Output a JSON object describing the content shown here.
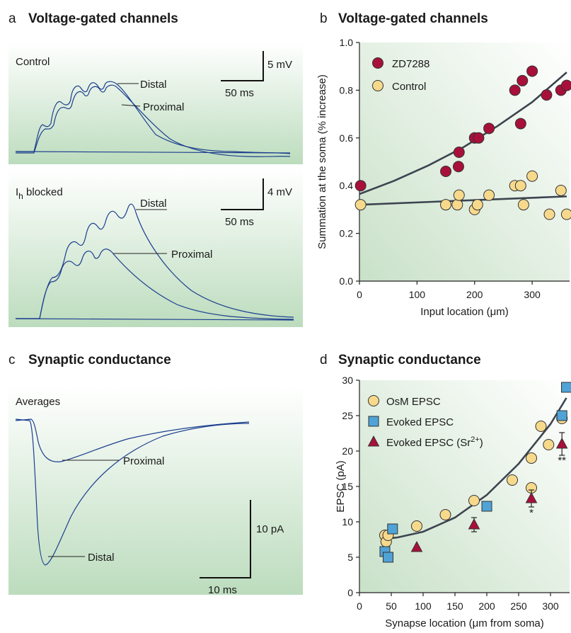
{
  "panel_a": {
    "letter": "a",
    "title": "Voltage-gated channels",
    "top": {
      "label": "Control",
      "scale_v": "5 mV",
      "scale_t": "50 ms",
      "distal": "Distal",
      "proximal": "Proximal"
    },
    "bottom": {
      "label_main": "I",
      "label_sub": "h",
      "label_rest": " blocked",
      "scale_v": "4 mV",
      "scale_t": "50 ms",
      "distal": "Distal",
      "proximal": "Proximal"
    }
  },
  "panel_c": {
    "letter": "c",
    "title": "Synaptic conductance",
    "label": "Averages",
    "proximal": "Proximal",
    "distal": "Distal",
    "scale_i": "10 pA",
    "scale_t": "10 ms"
  },
  "colors": {
    "red": "#a8103a",
    "yellow": "#f7d98c",
    "blue": "#4fa3d6",
    "trace": "#1c3f8f",
    "bg_green": "#c7e0c7"
  },
  "chart_data": [
    {
      "panel": "b",
      "type": "scatter",
      "letter": "b",
      "title": "Voltage-gated channels",
      "xlabel": "Input location (μm)",
      "ylabel": "Summation at the soma (% increase)",
      "xlim": [
        0,
        365
      ],
      "ylim": [
        0,
        1.0
      ],
      "xticks": [
        "0",
        "100",
        "200",
        "300"
      ],
      "xtick_values": [
        0,
        100,
        200,
        300
      ],
      "yticks": [
        "0.0",
        "0.2",
        "0.4",
        "0.6",
        "0.8",
        "1.0"
      ],
      "ytick_values": [
        0,
        0.2,
        0.4,
        0.6,
        0.8,
        1.0
      ],
      "legend_position": "top-left",
      "series": [
        {
          "name": "ZD7288",
          "marker": "circle",
          "color": "#a8103a",
          "x": [
            2,
            150,
            172,
            173,
            200,
            207,
            225,
            270,
            280,
            283,
            300,
            325,
            350,
            360
          ],
          "y": [
            0.4,
            0.46,
            0.48,
            0.54,
            0.6,
            0.6,
            0.64,
            0.8,
            0.66,
            0.84,
            0.88,
            0.78,
            0.8,
            0.82
          ]
        },
        {
          "name": "Control",
          "marker": "circle",
          "color": "#f7d98c",
          "x": [
            2,
            150,
            170,
            173,
            200,
            205,
            225,
            270,
            280,
            285,
            300,
            330,
            350,
            360
          ],
          "y": [
            0.32,
            0.32,
            0.32,
            0.36,
            0.3,
            0.32,
            0.36,
            0.4,
            0.4,
            0.32,
            0.44,
            0.28,
            0.38,
            0.28
          ]
        }
      ],
      "fits": [
        {
          "x": [
            0,
            60,
            120,
            180,
            240,
            300,
            360
          ],
          "y": [
            0.365,
            0.42,
            0.485,
            0.56,
            0.65,
            0.75,
            0.875
          ]
        },
        {
          "x": [
            0,
            360
          ],
          "y": [
            0.32,
            0.355
          ]
        }
      ]
    },
    {
      "panel": "d",
      "type": "scatter",
      "letter": "d",
      "title": "Synaptic conductance",
      "xlabel": "Synapse location (μm from soma)",
      "ylabel": "EPSC (pA)",
      "xlim": [
        0,
        330
      ],
      "ylim": [
        0,
        30
      ],
      "xticks": [
        "0",
        "50",
        "100",
        "150",
        "200",
        "250",
        "300"
      ],
      "xtick_values": [
        0,
        50,
        100,
        150,
        200,
        250,
        300
      ],
      "yticks": [
        "0",
        "5",
        "10",
        "15",
        "20",
        "25",
        "30"
      ],
      "ytick_values": [
        0,
        5,
        10,
        15,
        20,
        25,
        30
      ],
      "legend_position": "top-left",
      "legend_sr_main": "Evoked EPSC (Sr",
      "legend_sr_sup": "2+",
      "legend_sr_end": ")",
      "series": [
        {
          "name": "OsM EPSC",
          "marker": "circle",
          "color": "#f7d98c",
          "x": [
            40,
            42,
            45,
            90,
            135,
            180,
            240,
            270,
            270,
            285,
            297,
            318
          ],
          "y": [
            8.1,
            7.2,
            8.1,
            9.4,
            11.0,
            13.0,
            15.9,
            19.0,
            14.8,
            23.5,
            20.9,
            24.6
          ]
        },
        {
          "name": "Evoked EPSC",
          "marker": "square",
          "color": "#4fa3d6",
          "x": [
            40,
            45,
            52,
            200,
            318,
            325
          ],
          "y": [
            5.8,
            5.0,
            9.0,
            12.2,
            25.0,
            29.0
          ]
        },
        {
          "name": "Evoked EPSC (Sr2+)",
          "marker": "triangle",
          "color": "#a8103a",
          "x": [
            90,
            180,
            270,
            318
          ],
          "y": [
            6.4,
            9.6,
            13.3,
            21.0
          ],
          "err": [
            0,
            1.0,
            1.2,
            1.6
          ]
        }
      ],
      "annotations": [
        {
          "text": "*",
          "x": 270,
          "y": 10.8
        },
        {
          "text": "**",
          "x": 318,
          "y": 18.2
        }
      ],
      "fits": [
        {
          "x": [
            40,
            60,
            100,
            150,
            200,
            250,
            300,
            325
          ],
          "y": [
            7.6,
            7.8,
            8.6,
            10.6,
            13.8,
            18.2,
            23.8,
            27.5
          ]
        }
      ]
    }
  ]
}
